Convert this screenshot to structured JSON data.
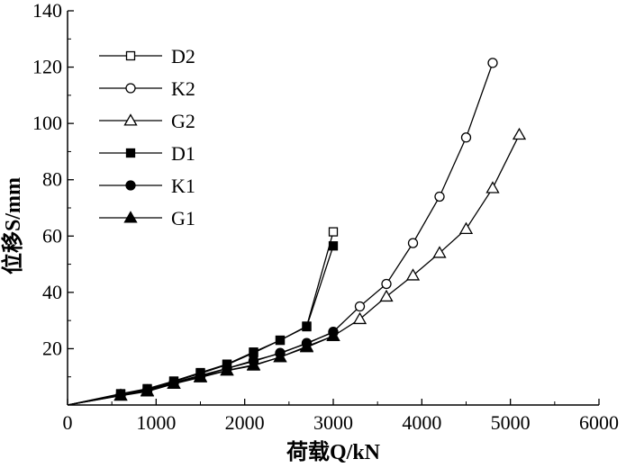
{
  "chart_data": {
    "type": "line",
    "xlabel": "荷载Q/kN",
    "ylabel": "位移S/mm",
    "xlim": [
      0,
      6000
    ],
    "ylim": [
      0,
      140
    ],
    "xticks": [
      0,
      1000,
      2000,
      3000,
      4000,
      5000,
      6000
    ],
    "yticks": [
      20,
      40,
      60,
      80,
      100,
      120,
      140
    ],
    "grid": false,
    "legend_position": "top-left",
    "series": [
      {
        "name": "D2",
        "marker": "square-open",
        "x": [
          0,
          600,
          900,
          1200,
          1500,
          1800,
          2100,
          2400,
          2700,
          3000
        ],
        "y": [
          0,
          3.8,
          5.5,
          8.3,
          11.2,
          14.3,
          18.5,
          23.0,
          28.0,
          61.5
        ]
      },
      {
        "name": "K2",
        "marker": "circle-open",
        "x": [
          0,
          600,
          900,
          1200,
          1500,
          1800,
          2100,
          2400,
          2700,
          3000,
          3300,
          3600,
          3900,
          4200,
          4500,
          4800
        ],
        "y": [
          0,
          3.5,
          5.0,
          7.8,
          10.2,
          13.0,
          15.5,
          18.5,
          21.8,
          26.0,
          35.0,
          43.0,
          57.5,
          74.0,
          95.0,
          121.5
        ]
      },
      {
        "name": "G2",
        "marker": "triangle-open",
        "x": [
          0,
          600,
          900,
          1200,
          1500,
          1800,
          2100,
          2400,
          2700,
          3000,
          3300,
          3600,
          3900,
          4200,
          4500,
          4800,
          5100
        ],
        "y": [
          0,
          3.3,
          4.8,
          7.5,
          9.8,
          12.2,
          14.0,
          17.0,
          20.5,
          24.5,
          30.5,
          38.5,
          46.0,
          54.0,
          62.5,
          77.0,
          96.0
        ]
      },
      {
        "name": "D1",
        "marker": "square-filled",
        "x": [
          0,
          600,
          900,
          1200,
          1500,
          1800,
          2100,
          2400,
          2700,
          3000
        ],
        "y": [
          0,
          4.0,
          5.8,
          8.5,
          11.5,
          14.5,
          18.8,
          23.0,
          27.8,
          56.5
        ]
      },
      {
        "name": "K1",
        "marker": "circle-filled",
        "x": [
          0,
          600,
          900,
          1200,
          1500,
          1800,
          2100,
          2400,
          2700,
          3000
        ],
        "y": [
          0,
          3.6,
          5.2,
          8.0,
          10.5,
          13.0,
          15.8,
          18.3,
          22.0,
          25.8
        ]
      },
      {
        "name": "G1",
        "marker": "triangle-filled",
        "x": [
          0,
          600,
          900,
          1200,
          1500,
          1800,
          2100,
          2400,
          2700,
          3000
        ],
        "y": [
          0,
          3.4,
          5.0,
          7.6,
          10.0,
          12.3,
          14.2,
          17.0,
          20.8,
          24.5
        ]
      }
    ]
  }
}
